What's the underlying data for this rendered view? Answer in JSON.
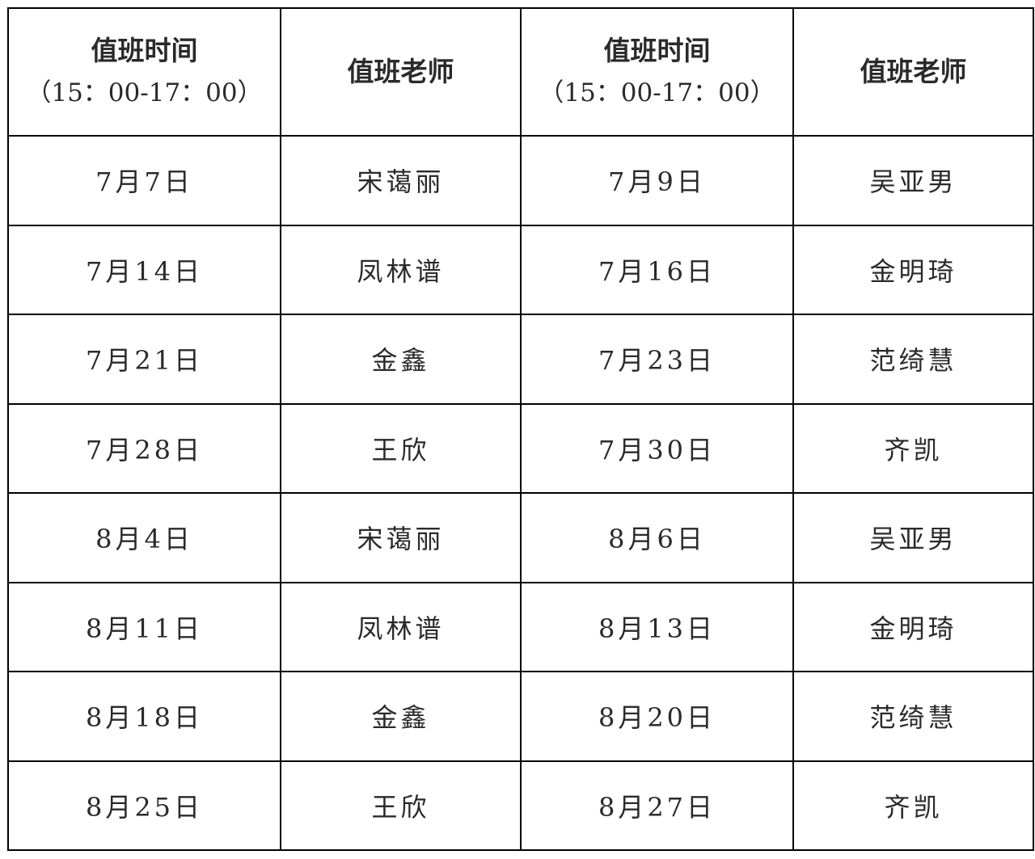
{
  "headers": [
    {
      "title": "值班时间",
      "sub": "（15：00-17：00）"
    },
    {
      "title": "值班老师",
      "sub": ""
    },
    {
      "title": "值班时间",
      "sub": "（15：00-17：00）"
    },
    {
      "title": "值班老师",
      "sub": ""
    }
  ],
  "rows": [
    [
      "7月7日",
      "宋蔼丽",
      "7月9日",
      "吴亚男"
    ],
    [
      "7月14日",
      "凤林谱",
      "7月16日",
      "金明琦"
    ],
    [
      "7月21日",
      "金鑫",
      "7月23日",
      "范绮慧"
    ],
    [
      "7月28日",
      "王欣",
      "7月30日",
      "齐凯"
    ],
    [
      "8月4日",
      "宋蔼丽",
      "8月6日",
      "吴亚男"
    ],
    [
      "8月11日",
      "凤林谱",
      "8月13日",
      "金明琦"
    ],
    [
      "8月18日",
      "金鑫",
      "8月20日",
      "范绮慧"
    ],
    [
      "8月25日",
      "王欣",
      "8月27日",
      "齐凯"
    ]
  ]
}
